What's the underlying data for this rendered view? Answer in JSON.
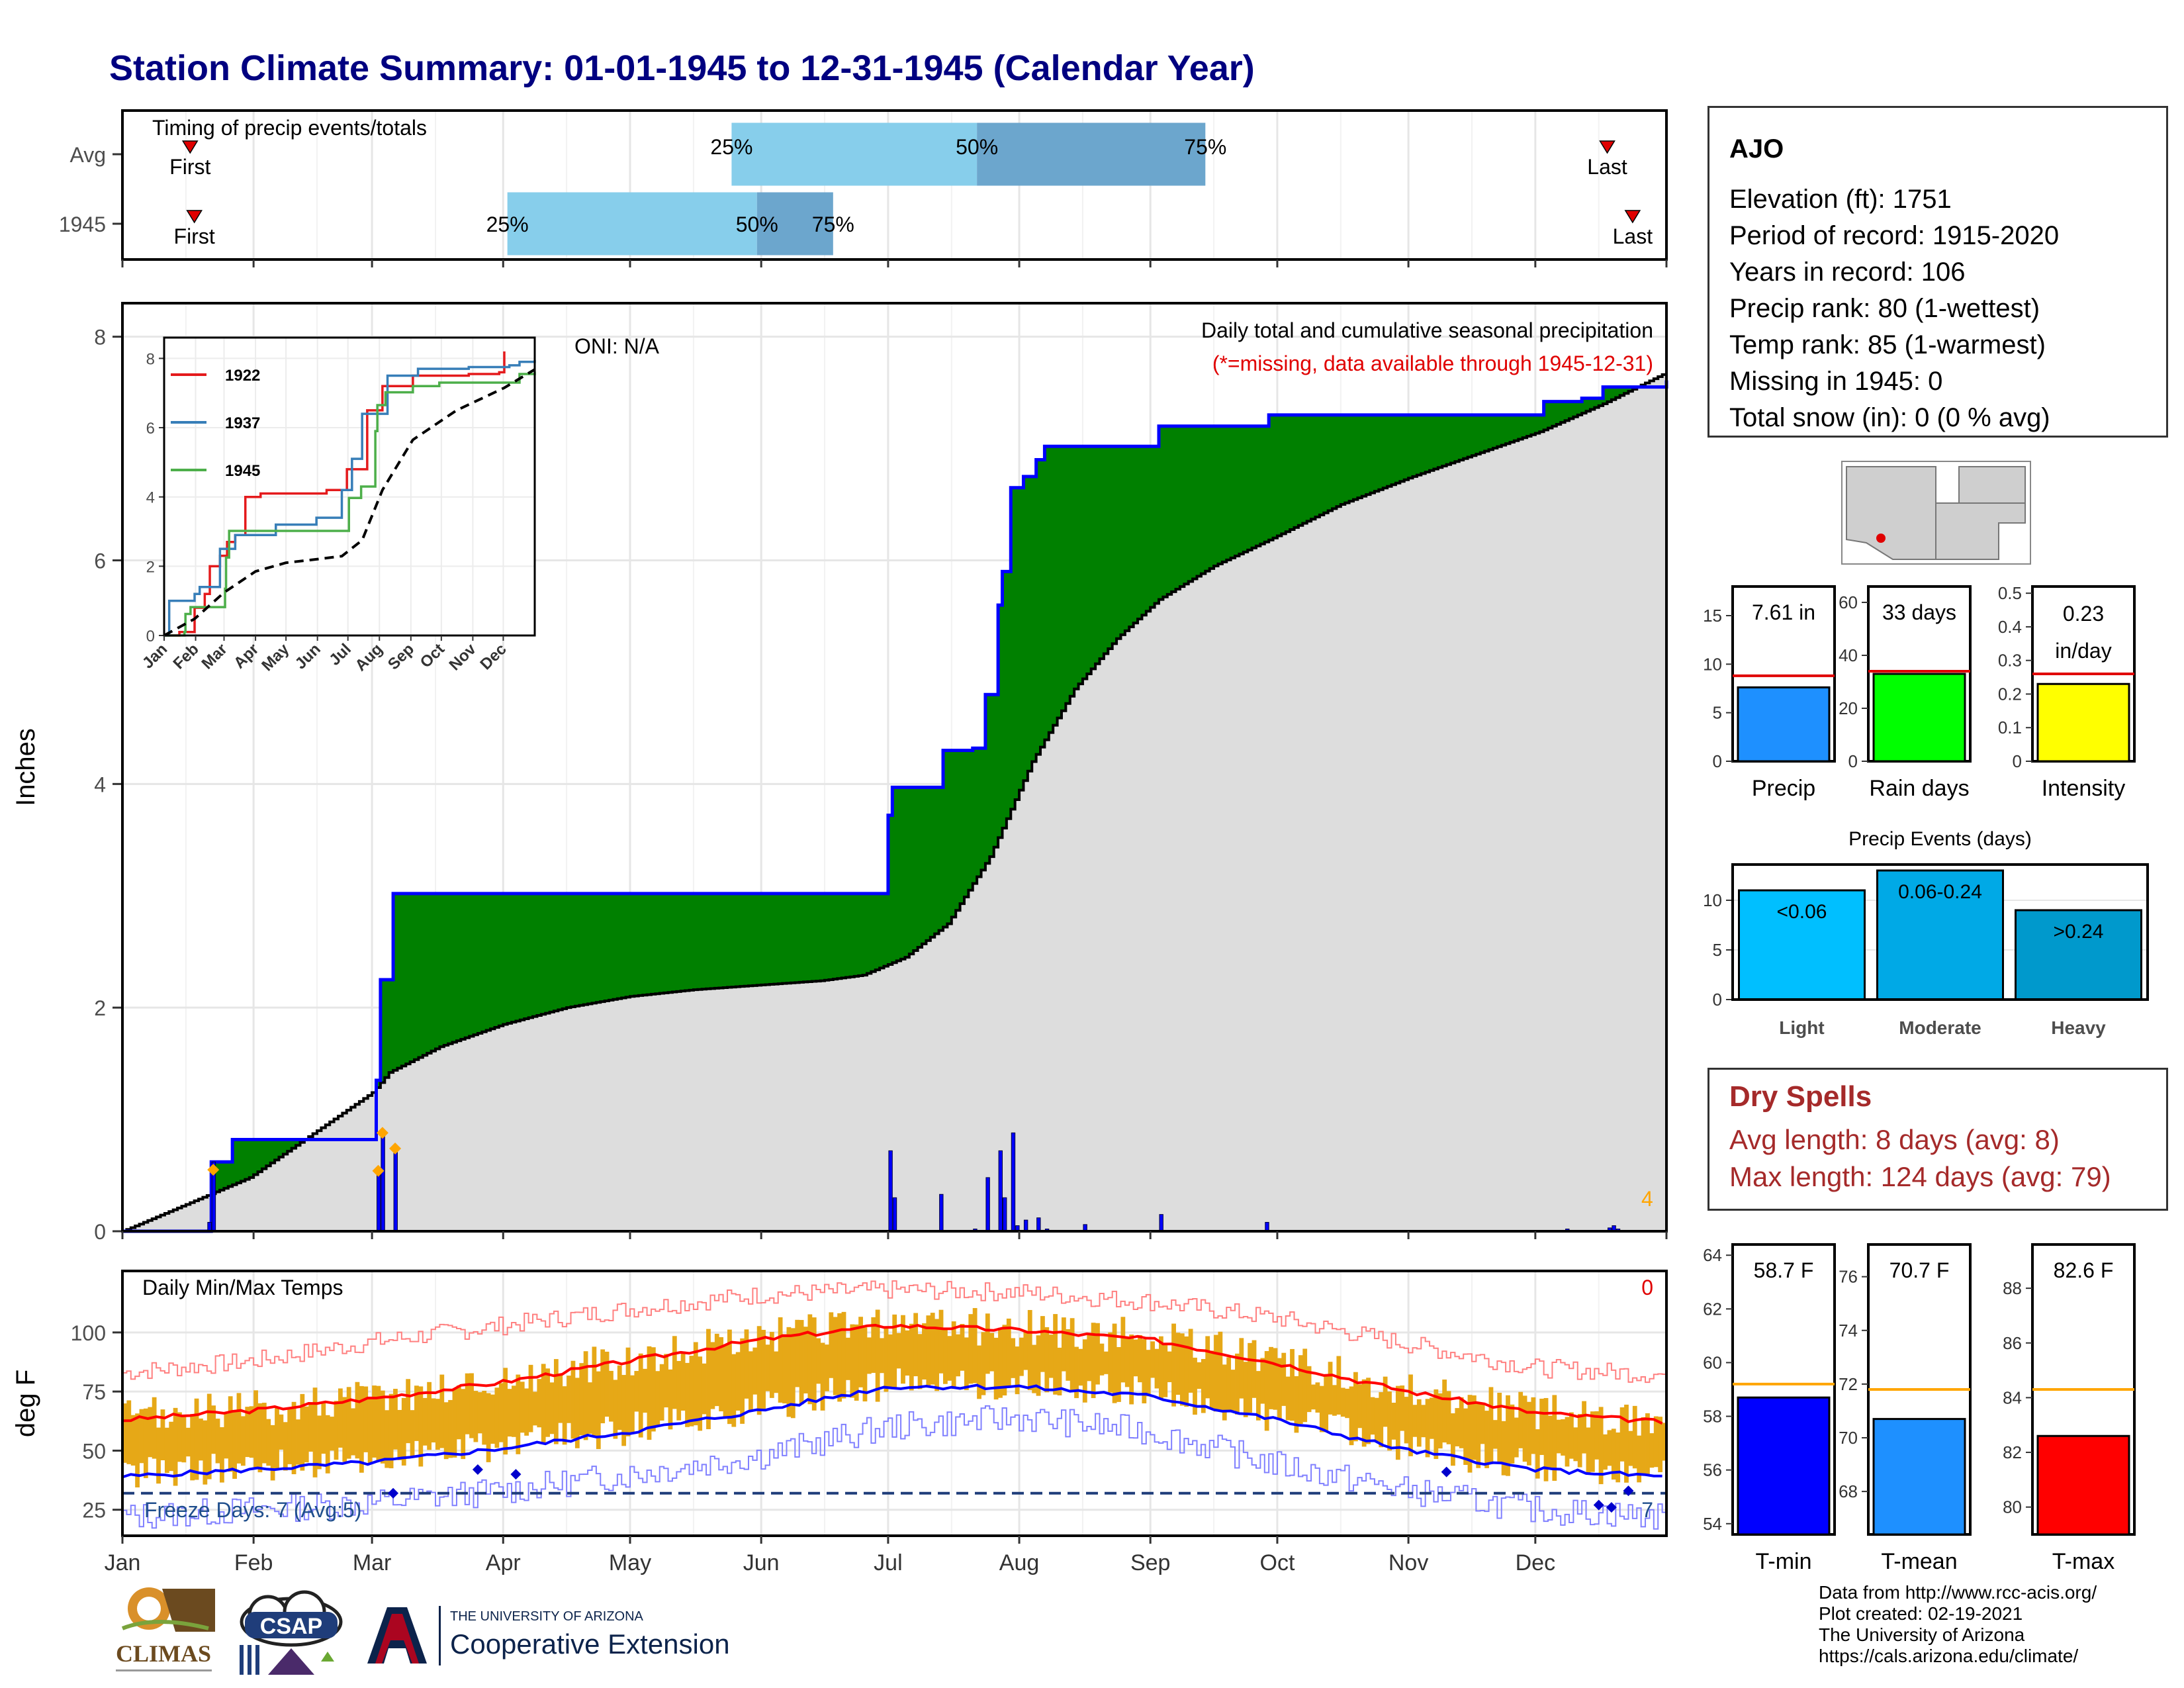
{
  "title": "Station Climate Summary: 01-01-1945 to 12-31-1945 (Calendar Year)",
  "station": {
    "name": "AJO",
    "lines": [
      "Elevation (ft): 1751",
      "Period of record: 1915-2020",
      "Years in record: 106",
      "Precip rank: 80 (1-wettest)",
      "Temp rank: 85 (1-warmest)",
      "Missing in 1945: 0",
      "Total snow (in): 0 (0 % avg)"
    ]
  },
  "dry_spells": {
    "title": "Dry Spells",
    "avg_length": "Avg length: 8 days (avg: 8)",
    "max_length": "Max length: 124 days (avg: 79)"
  },
  "credits": [
    "Data from http://www.rcc-acis.org/",
    "Plot created: 02-19-2021",
    "The University of Arizona",
    "https://cals.arizona.edu/climate/"
  ],
  "logos": {
    "climas": "CLIMAS",
    "csap": "CSAP",
    "ua_top": "THE UNIVERSITY OF ARIZONA",
    "ua_bottom": "Cooperative Extension"
  },
  "colors": {
    "title": "#000080",
    "above_avg_fill": "#008000",
    "below_avg_fill": "#8B4513",
    "climatology_fill": "#dddddd",
    "cum_line": "#0000ff",
    "quartile_light": "#87CEEB",
    "quartile_dark": "#6CA6CD",
    "temp_bar": "#E6A817",
    "tmax_avg": "#ff0000",
    "tmin_avg": "#0000ff"
  },
  "chart_data": [
    {
      "type": "bar",
      "name": "timing",
      "title": "Timing of precip events/totals",
      "categories": [
        "Avg",
        "1945"
      ],
      "quartile_labels": [
        "25%",
        "50%",
        "75%"
      ],
      "quartiles_doy": [
        [
          144,
          202,
          256
        ],
        [
          91,
          150,
          168
        ]
      ],
      "first_label": "First",
      "last_label": "Last",
      "first_doy": [
        16,
        17
      ],
      "last_doy": [
        351,
        357
      ]
    },
    {
      "type": "area",
      "name": "cumulative precip",
      "title": "Daily total and cumulative seasonal precipitation",
      "subtitle": "(*=missing, data available through 1945-12-31)",
      "oni": "ONI: N/A",
      "ylabel": "Inches",
      "ylim": [
        0,
        8.3
      ],
      "yticks": [
        0,
        2,
        4,
        6,
        8
      ],
      "x_months": [
        "Jan",
        "Feb",
        "Mar",
        "Apr",
        "May",
        "Jun",
        "Jul",
        "Aug",
        "Sep",
        "Oct",
        "Nov",
        "Dec"
      ],
      "corner_count": "4",
      "cum_1945": [
        [
          0,
          0
        ],
        [
          20,
          0
        ],
        [
          21,
          0.62
        ],
        [
          26,
          0.82
        ],
        [
          59,
          0.82
        ],
        [
          60,
          1.35
        ],
        [
          61,
          2.25
        ],
        [
          63,
          2.25
        ],
        [
          64,
          3.02
        ],
        [
          180,
          3.02
        ],
        [
          181,
          3.72
        ],
        [
          182,
          3.97
        ],
        [
          193,
          3.97
        ],
        [
          194,
          4.3
        ],
        [
          201,
          4.32
        ],
        [
          204,
          4.8
        ],
        [
          207,
          5.6
        ],
        [
          208,
          5.9
        ],
        [
          210,
          6.65
        ],
        [
          213,
          6.75
        ],
        [
          216,
          6.9
        ],
        [
          218,
          7.02
        ],
        [
          244,
          7.02
        ],
        [
          245,
          7.2
        ],
        [
          270,
          7.2
        ],
        [
          271,
          7.3
        ],
        [
          330,
          7.3
        ],
        [
          336,
          7.42
        ],
        [
          345,
          7.45
        ],
        [
          350,
          7.55
        ],
        [
          365,
          7.61
        ]
      ],
      "cum_avg": [
        [
          0,
          0
        ],
        [
          30,
          0.48
        ],
        [
          59,
          1.24
        ],
        [
          63,
          1.42
        ],
        [
          75,
          1.65
        ],
        [
          90,
          1.85
        ],
        [
          105,
          2.0
        ],
        [
          120,
          2.1
        ],
        [
          135,
          2.16
        ],
        [
          150,
          2.2
        ],
        [
          165,
          2.24
        ],
        [
          175,
          2.29
        ],
        [
          185,
          2.45
        ],
        [
          195,
          2.75
        ],
        [
          205,
          3.35
        ],
        [
          215,
          4.2
        ],
        [
          225,
          4.85
        ],
        [
          235,
          5.3
        ],
        [
          245,
          5.65
        ],
        [
          258,
          5.95
        ],
        [
          272,
          6.2
        ],
        [
          288,
          6.5
        ],
        [
          305,
          6.75
        ],
        [
          320,
          6.95
        ],
        [
          335,
          7.15
        ],
        [
          350,
          7.4
        ],
        [
          365,
          7.68
        ]
      ],
      "daily_bars": [
        [
          20,
          0.08
        ],
        [
          21,
          0.62
        ],
        [
          60,
          0.55
        ],
        [
          61,
          0.9
        ],
        [
          64,
          0.75
        ],
        [
          181,
          0.72
        ],
        [
          182,
          0.3
        ],
        [
          193,
          0.33
        ],
        [
          201,
          0.02
        ],
        [
          204,
          0.48
        ],
        [
          207,
          0.72
        ],
        [
          208,
          0.3
        ],
        [
          210,
          0.88
        ],
        [
          211,
          0.05
        ],
        [
          213,
          0.1
        ],
        [
          216,
          0.12
        ],
        [
          218,
          0.02
        ],
        [
          227,
          0.06
        ],
        [
          245,
          0.15
        ],
        [
          270,
          0.08
        ],
        [
          341,
          0.02
        ],
        [
          351,
          0.03
        ],
        [
          352,
          0.05
        ],
        [
          353,
          0.02
        ]
      ],
      "diamond_days": [
        [
          21,
          0.55
        ],
        [
          60,
          0.54
        ],
        [
          61,
          0.88
        ],
        [
          64,
          0.74
        ]
      ]
    },
    {
      "type": "line",
      "name": "inset",
      "series": [
        {
          "name": "1922",
          "color": "#e41a1c",
          "points": [
            [
              0,
              0
            ],
            [
              15,
              0.1
            ],
            [
              30,
              0.8
            ],
            [
              40,
              1.2
            ],
            [
              45,
              2.0
            ],
            [
              55,
              2.3
            ],
            [
              62,
              2.7
            ],
            [
              70,
              2.9
            ],
            [
              80,
              4.0
            ],
            [
              95,
              4.1
            ],
            [
              120,
              4.1
            ],
            [
              160,
              4.2
            ],
            [
              180,
              4.8
            ],
            [
              200,
              6.5
            ],
            [
              215,
              7.2
            ],
            [
              245,
              7.5
            ],
            [
              300,
              7.55
            ],
            [
              330,
              7.6
            ],
            [
              335,
              8.2
            ]
          ]
        },
        {
          "name": "1937",
          "color": "#377eb8",
          "points": [
            [
              0,
              0
            ],
            [
              5,
              1.0
            ],
            [
              30,
              1.2
            ],
            [
              35,
              1.4
            ],
            [
              55,
              2.5
            ],
            [
              70,
              2.9
            ],
            [
              80,
              2.9
            ],
            [
              110,
              3.2
            ],
            [
              150,
              3.4
            ],
            [
              175,
              4.2
            ],
            [
              185,
              5.1
            ],
            [
              195,
              6.4
            ],
            [
              220,
              7.5
            ],
            [
              250,
              7.7
            ],
            [
              300,
              7.75
            ],
            [
              340,
              7.8
            ],
            [
              350,
              7.9
            ],
            [
              365,
              7.95
            ]
          ]
        },
        {
          "name": "1945",
          "color": "#4daf4a",
          "points": [
            [
              0,
              0
            ],
            [
              20,
              0.1
            ],
            [
              21,
              0.62
            ],
            [
              26,
              0.82
            ],
            [
              59,
              0.82
            ],
            [
              60,
              1.35
            ],
            [
              61,
              2.25
            ],
            [
              64,
              3.02
            ],
            [
              180,
              3.02
            ],
            [
              182,
              3.97
            ],
            [
              194,
              4.3
            ],
            [
              208,
              5.9
            ],
            [
              210,
              6.65
            ],
            [
              218,
              7.02
            ],
            [
              244,
              7.02
            ],
            [
              245,
              7.2
            ],
            [
              271,
              7.3
            ],
            [
              330,
              7.3
            ],
            [
              350,
              7.55
            ],
            [
              365,
              7.61
            ]
          ]
        },
        {
          "name": "avg",
          "color": "#000000",
          "dashed": true,
          "points": [
            [
              0,
              0
            ],
            [
              30,
              0.48
            ],
            [
              59,
              1.24
            ],
            [
              90,
              1.85
            ],
            [
              120,
              2.1
            ],
            [
              150,
              2.2
            ],
            [
              175,
              2.29
            ],
            [
              195,
              2.75
            ],
            [
              215,
              4.2
            ],
            [
              245,
              5.65
            ],
            [
              288,
              6.5
            ],
            [
              335,
              7.15
            ],
            [
              365,
              7.68
            ]
          ]
        }
      ],
      "yticks": [
        0,
        2,
        4,
        6,
        8
      ],
      "ylim": [
        0,
        8.6
      ],
      "x_months": [
        "Jan",
        "Feb",
        "Mar",
        "Apr",
        "May",
        "Jun",
        "Jul",
        "Aug",
        "Sep",
        "Oct",
        "Nov",
        "Dec"
      ]
    },
    {
      "type": "bar",
      "name": "daily temps",
      "title": "Daily Min/Max Temps",
      "ylabel": "deg F",
      "yticks": [
        25,
        50,
        75,
        100
      ],
      "ylim": [
        14,
        126
      ],
      "x_months": [
        "Jan",
        "Feb",
        "Mar",
        "Apr",
        "May",
        "Jun",
        "Jul",
        "Aug",
        "Sep",
        "Oct",
        "Nov",
        "Dec"
      ],
      "freeze_label": "Freeze Days: 7 (Avg:5)",
      "freeze_line": 32,
      "corner_top": "0",
      "corner_bottom": "7",
      "tmax_avg": [
        [
          0,
          63
        ],
        [
          31,
          67
        ],
        [
          59,
          72
        ],
        [
          90,
          79
        ],
        [
          120,
          88
        ],
        [
          151,
          97
        ],
        [
          181,
          103
        ],
        [
          212,
          101
        ],
        [
          243,
          97
        ],
        [
          273,
          87
        ],
        [
          304,
          75
        ],
        [
          334,
          66
        ],
        [
          365,
          62
        ]
      ],
      "tmin_avg": [
        [
          0,
          39
        ],
        [
          31,
          42
        ],
        [
          59,
          45
        ],
        [
          90,
          51
        ],
        [
          120,
          58
        ],
        [
          151,
          67
        ],
        [
          181,
          77
        ],
        [
          212,
          77
        ],
        [
          243,
          73
        ],
        [
          273,
          63
        ],
        [
          304,
          50
        ],
        [
          334,
          42
        ],
        [
          365,
          39
        ]
      ],
      "record_max": [
        [
          0,
          83
        ],
        [
          31,
          88
        ],
        [
          59,
          96
        ],
        [
          90,
          103
        ],
        [
          120,
          110
        ],
        [
          151,
          116
        ],
        [
          181,
          118
        ],
        [
          212,
          117
        ],
        [
          243,
          113
        ],
        [
          273,
          106
        ],
        [
          304,
          95
        ],
        [
          334,
          85
        ],
        [
          365,
          82
        ]
      ],
      "record_min": [
        [
          0,
          22
        ],
        [
          31,
          25
        ],
        [
          59,
          28
        ],
        [
          90,
          33
        ],
        [
          120,
          40
        ],
        [
          151,
          48
        ],
        [
          181,
          60
        ],
        [
          212,
          64
        ],
        [
          243,
          58
        ],
        [
          273,
          44
        ],
        [
          304,
          33
        ],
        [
          334,
          25
        ],
        [
          365,
          22
        ]
      ],
      "freeze_days": [
        [
          64,
          32
        ],
        [
          84,
          42
        ],
        [
          93,
          40
        ],
        [
          313,
          41
        ],
        [
          349,
          27
        ],
        [
          352,
          26
        ],
        [
          356,
          33
        ]
      ]
    },
    {
      "type": "bar",
      "name": "summary bars",
      "panels": [
        {
          "label": "Precip",
          "value_label": "7.61 in",
          "value": 7.61,
          "avg": 8.8,
          "ylim": [
            0,
            18
          ],
          "yticks": [
            0,
            5,
            10,
            15
          ],
          "color": "#1E90FF"
        },
        {
          "label": "Rain days",
          "value_label": "33 days",
          "value": 33,
          "avg": 34,
          "ylim": [
            0,
            66
          ],
          "yticks": [
            0,
            20,
            40,
            60
          ],
          "color": "#00FF00"
        },
        {
          "label": "Intensity",
          "value_label": "0.23 in/day",
          "value": 0.23,
          "avg": 0.26,
          "ylim": [
            0,
            0.52
          ],
          "yticks": [
            0.0,
            0.1,
            0.2,
            0.3,
            0.4,
            0.5
          ],
          "color": "#FFFF00"
        }
      ]
    },
    {
      "type": "bar",
      "name": "precip events",
      "title": "Precip Events (days)",
      "categories": [
        "Light",
        "Moderate",
        "Heavy"
      ],
      "value_labels": [
        "<0.06",
        "0.06-0.24",
        ">0.24"
      ],
      "values": [
        11,
        13,
        9
      ],
      "ylim": [
        0,
        13.6
      ],
      "yticks": [
        0,
        5,
        10
      ],
      "colors": [
        "#00BFFF",
        "#00A9E6",
        "#0099CC"
      ]
    },
    {
      "type": "bar",
      "name": "temperature summary",
      "panels": [
        {
          "label": "T-min",
          "value_label": "58.7 F",
          "value": 58.7,
          "avg": 59.2,
          "ylim": [
            53.6,
            64.4
          ],
          "yticks": [
            54,
            56,
            58,
            60,
            62,
            64
          ],
          "color": "#0000FF"
        },
        {
          "label": "T-mean",
          "value_label": "70.7 F",
          "value": 70.7,
          "avg": 71.8,
          "ylim": [
            66.4,
            77.2
          ],
          "yticks": [
            68,
            70,
            72,
            74,
            76
          ],
          "color": "#1E90FF"
        },
        {
          "label": "T-max",
          "value_label": "82.6 F",
          "value": 82.6,
          "avg": 84.3,
          "ylim": [
            79.0,
            89.6
          ],
          "yticks": [
            80,
            82,
            84,
            86,
            88
          ],
          "color": "#FF0000"
        }
      ]
    }
  ]
}
